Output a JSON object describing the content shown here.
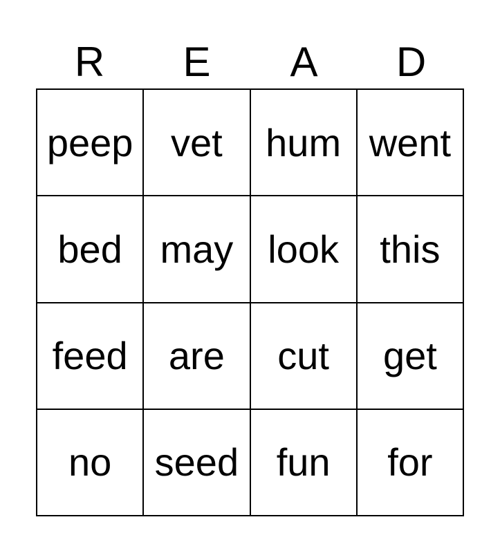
{
  "header": [
    "R",
    "E",
    "A",
    "D"
  ],
  "cells": [
    [
      "peep",
      "vet",
      "hum",
      "went"
    ],
    [
      "bed",
      "may",
      "look",
      "this"
    ],
    [
      "feed",
      "are",
      "cut",
      "get"
    ],
    [
      "no",
      "seed",
      "fun",
      "for"
    ]
  ]
}
